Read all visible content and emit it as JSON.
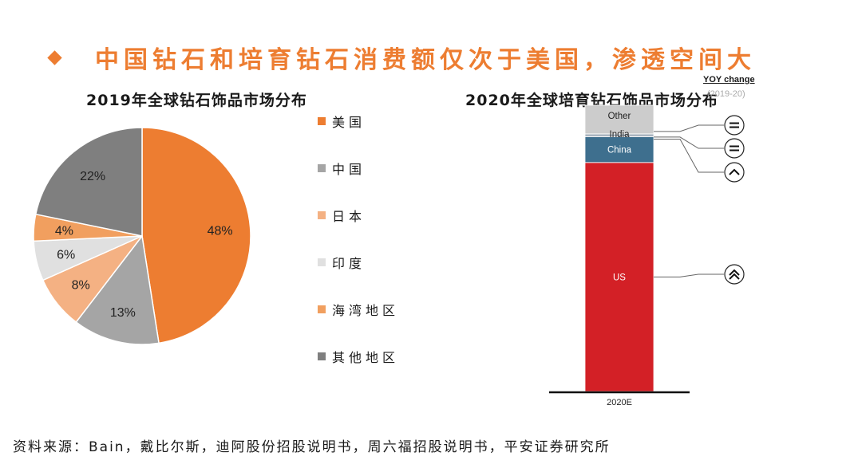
{
  "header": {
    "title": "中国钻石和培育钻石消费额仅次于美国，渗透空间大"
  },
  "pie_chart": {
    "title": "2019年全球钻石饰品市场分布"
  },
  "bar_chart": {
    "title": "2020年全球培育钻石饰品市场分布",
    "yoy_title": "YOY change",
    "yoy_subtitle": "(2019-20)"
  },
  "source": {
    "text": "资料来源：Bain，戴比尔斯，迪阿股份招股说明书，周六福招股说明书，平安证券研究所"
  },
  "chart_data": [
    {
      "type": "pie",
      "title": "2019年全球钻石饰品市场分布",
      "categories": [
        "美国",
        "中国",
        "日本",
        "印度",
        "海湾地区",
        "其他地区"
      ],
      "values": [
        48,
        13,
        8,
        6,
        4,
        22
      ],
      "labels": [
        "48%",
        "13%",
        "8%",
        "6%",
        "4%",
        "22%"
      ],
      "colors": [
        "#ed7d31",
        "#a5a5a5",
        "#f4b183",
        "#e0e0e0",
        "#f19f5f",
        "#7f7f7f"
      ],
      "legend_position": "right"
    },
    {
      "type": "bar",
      "stacked": true,
      "title": "2020年全球培育钻石饰品市场分布",
      "categories": [
        "2020E"
      ],
      "series": [
        {
          "name": "US",
          "values": [
            80
          ],
          "color": "#d32026",
          "yoy": "strong-up"
        },
        {
          "name": "China",
          "values": [
            9
          ],
          "color": "#3e6f8e",
          "yoy": "up"
        },
        {
          "name": "India",
          "values": [
            1
          ],
          "color": "#aab5bf",
          "yoy": "flat"
        },
        {
          "name": "Other",
          "values": [
            10
          ],
          "color": "#cccccc",
          "yoy": "flat"
        }
      ],
      "ylim": [
        0,
        100
      ],
      "yoy_icons": [
        "equals-icon",
        "equals-icon",
        "chevron-up-icon",
        "double-chevron-up-icon"
      ]
    }
  ]
}
